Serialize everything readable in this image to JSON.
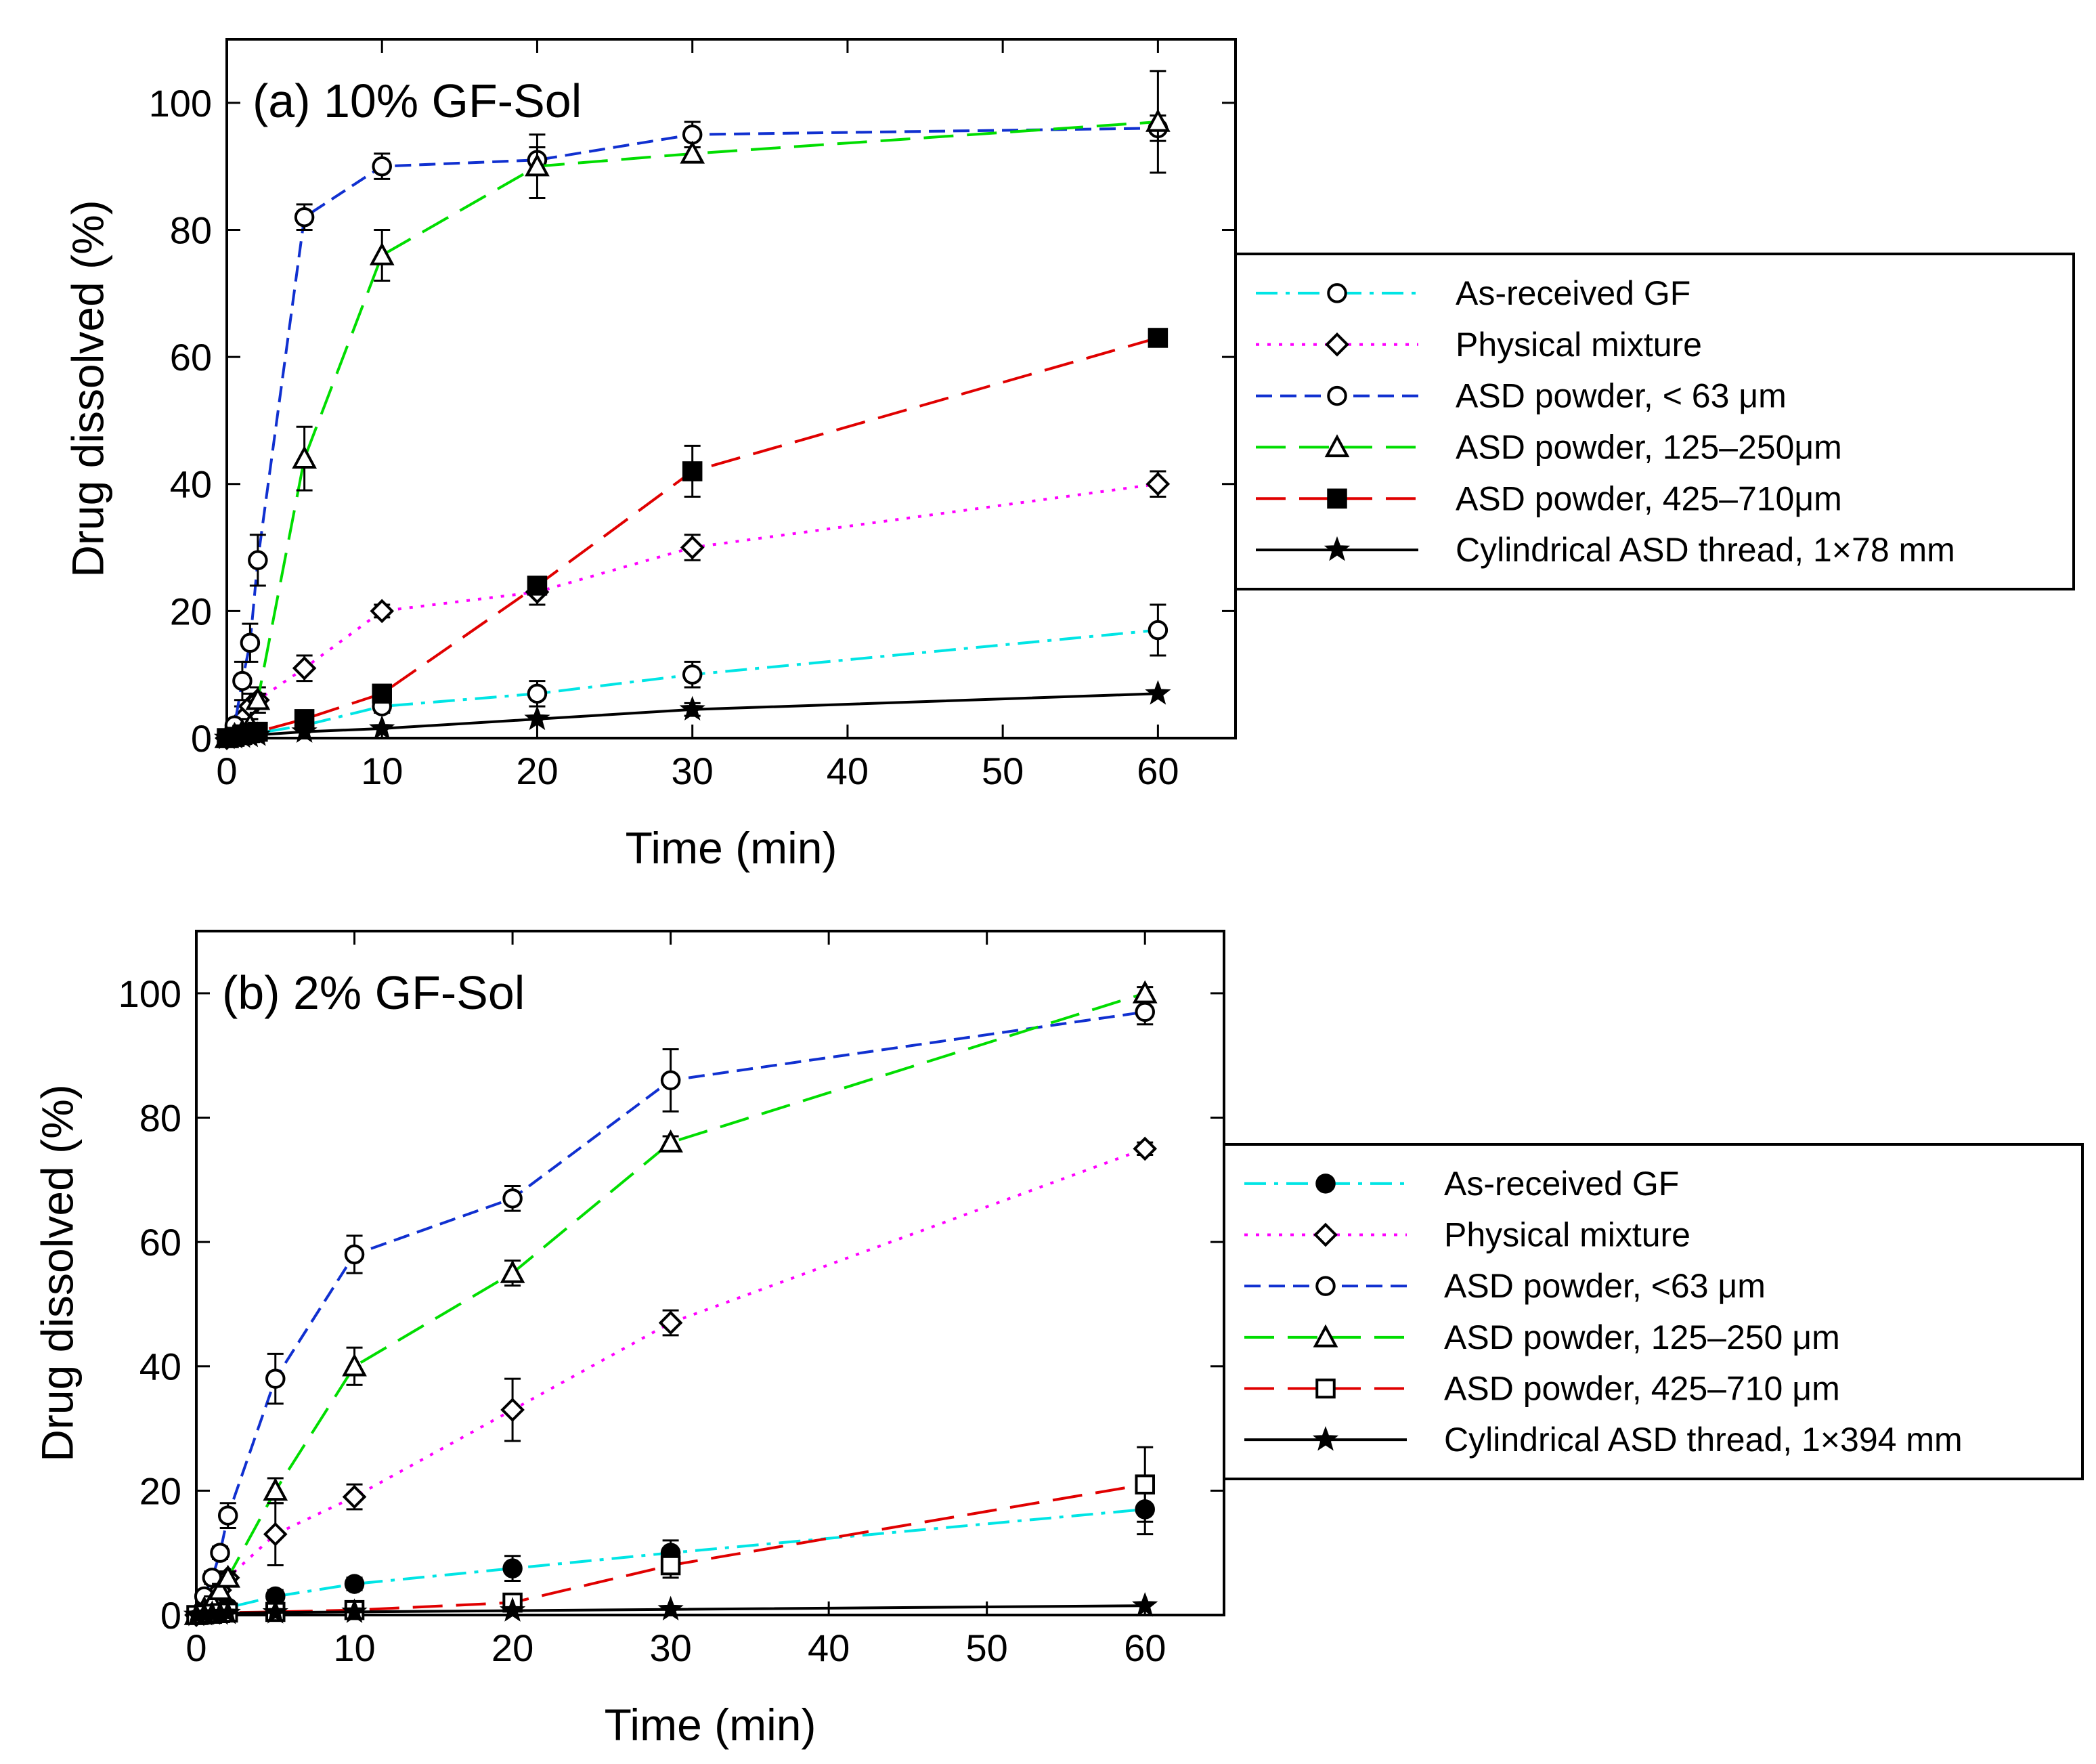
{
  "chart_data": [
    {
      "type": "line",
      "title": "(a) 10% GF-Sol",
      "xlabel": "Time (min)",
      "ylabel": "Drug dissolved (%)",
      "xlim": [
        0,
        65
      ],
      "ylim": [
        0,
        110
      ],
      "xticks": [
        0,
        10,
        20,
        30,
        40,
        50,
        60
      ],
      "yticks": [
        0,
        20,
        40,
        60,
        80,
        100
      ],
      "legend_position": "right",
      "x": [
        0,
        0.5,
        1,
        1.5,
        2,
        5,
        10,
        20,
        30,
        60
      ],
      "series": [
        {
          "name": "As-received GF",
          "color": "#00e5e5",
          "dash": "dashdot",
          "marker": "circle-open",
          "values": [
            0,
            0.2,
            0.4,
            0.6,
            0.8,
            2,
            5,
            7,
            10,
            17
          ],
          "errors": [
            0,
            0,
            0,
            0,
            0,
            1,
            1,
            2,
            2,
            4
          ]
        },
        {
          "name": "Physical mixture",
          "color": "#ff00ff",
          "dash": "dotted",
          "marker": "diamond-open",
          "values": [
            0,
            1,
            3,
            5,
            6,
            11,
            20,
            23,
            30,
            40
          ],
          "errors": [
            0,
            1,
            2,
            2,
            2,
            2,
            1,
            2,
            2,
            2
          ]
        },
        {
          "name": "ASD powder, < 63 μm",
          "color": "#1030d0",
          "dash": "dashed",
          "marker": "circle-open",
          "values": [
            0,
            2,
            9,
            15,
            28,
            82,
            90,
            91,
            95,
            96
          ],
          "errors": [
            0,
            1,
            3,
            3,
            4,
            2,
            2,
            2,
            2,
            2
          ]
        },
        {
          "name": "ASD powder, 125–250μm",
          "color": "#00dd00",
          "dash": "longdash",
          "marker": "triangle-open",
          "values": [
            0,
            0.5,
            1,
            2,
            6,
            44,
            76,
            90,
            92,
            97
          ],
          "errors": [
            0,
            0,
            1,
            1,
            1,
            5,
            4,
            5,
            1,
            8
          ]
        },
        {
          "name": "ASD powder, 425–710μm",
          "color": "#e00000",
          "dash": "longdash",
          "marker": "square-filled",
          "values": [
            0,
            0.2,
            0.5,
            0.8,
            1,
            3,
            7,
            24,
            42,
            63
          ],
          "errors": [
            0,
            0,
            0,
            0,
            0,
            1,
            1,
            1,
            4,
            1
          ]
        },
        {
          "name": "Cylindrical ASD thread, 1×78 mm",
          "color": "#000000",
          "dash": "solid",
          "marker": "star-filled",
          "values": [
            0,
            0.1,
            0.2,
            0.3,
            0.5,
            1,
            1.5,
            3,
            4.5,
            7
          ],
          "errors": [
            0,
            0,
            0,
            0,
            0,
            0,
            0,
            0,
            1,
            0
          ]
        }
      ]
    },
    {
      "type": "line",
      "title": "(b) 2% GF-Sol",
      "xlabel": "Time (min)",
      "ylabel": "Drug dissolved (%)",
      "xlim": [
        0,
        65
      ],
      "ylim": [
        0,
        110
      ],
      "xticks": [
        0,
        10,
        20,
        30,
        40,
        50,
        60
      ],
      "yticks": [
        0,
        20,
        40,
        60,
        80,
        100
      ],
      "legend_position": "right",
      "x": [
        0,
        0.5,
        1,
        1.5,
        2,
        5,
        10,
        20,
        30,
        60
      ],
      "series": [
        {
          "name": "As-received GF",
          "color": "#00e5e5",
          "dash": "dashdot",
          "marker": "circle-filled",
          "values": [
            0,
            0.3,
            0.6,
            0.9,
            1.2,
            3,
            5,
            7.5,
            10,
            17
          ],
          "errors": [
            0,
            0,
            0,
            0,
            0,
            1,
            1,
            2,
            2,
            4
          ]
        },
        {
          "name": "Physical mixture",
          "color": "#ff00ff",
          "dash": "dotted",
          "marker": "diamond-open",
          "values": [
            0,
            1,
            2,
            4,
            6,
            13,
            19,
            33,
            47,
            75
          ],
          "errors": [
            0,
            1,
            1,
            1,
            1,
            5,
            2,
            5,
            2,
            1
          ]
        },
        {
          "name": "ASD powder, <63 μm",
          "color": "#1030d0",
          "dash": "dashed",
          "marker": "circle-open",
          "values": [
            0,
            3,
            6,
            10,
            16,
            38,
            58,
            67,
            86,
            97
          ],
          "errors": [
            0,
            1,
            1,
            1,
            2,
            4,
            3,
            2,
            5,
            2
          ]
        },
        {
          "name": "ASD powder, 125–250 μm",
          "color": "#00dd00",
          "dash": "longdash",
          "marker": "triangle-open",
          "values": [
            0,
            1,
            2,
            4,
            6,
            20,
            40,
            55,
            76,
            100
          ],
          "errors": [
            0,
            0,
            1,
            1,
            1,
            2,
            3,
            2,
            1,
            1
          ]
        },
        {
          "name": "ASD powder, 425–710 μm",
          "color": "#e00000",
          "dash": "longdash",
          "marker": "square-open",
          "values": [
            0,
            0.1,
            0.2,
            0.3,
            0.4,
            0.5,
            0.8,
            2,
            8,
            21
          ],
          "errors": [
            0,
            0,
            0,
            0,
            0,
            0,
            0,
            1,
            2,
            6
          ]
        },
        {
          "name": "Cylindrical ASD thread, 1×394 mm",
          "color": "#000000",
          "dash": "solid",
          "marker": "star-filled",
          "values": [
            0,
            0.1,
            0.2,
            0.2,
            0.3,
            0.4,
            0.5,
            0.7,
            0.9,
            1.5
          ],
          "errors": [
            0,
            0,
            0,
            0,
            0,
            0,
            0,
            0,
            0,
            0
          ]
        }
      ]
    }
  ]
}
